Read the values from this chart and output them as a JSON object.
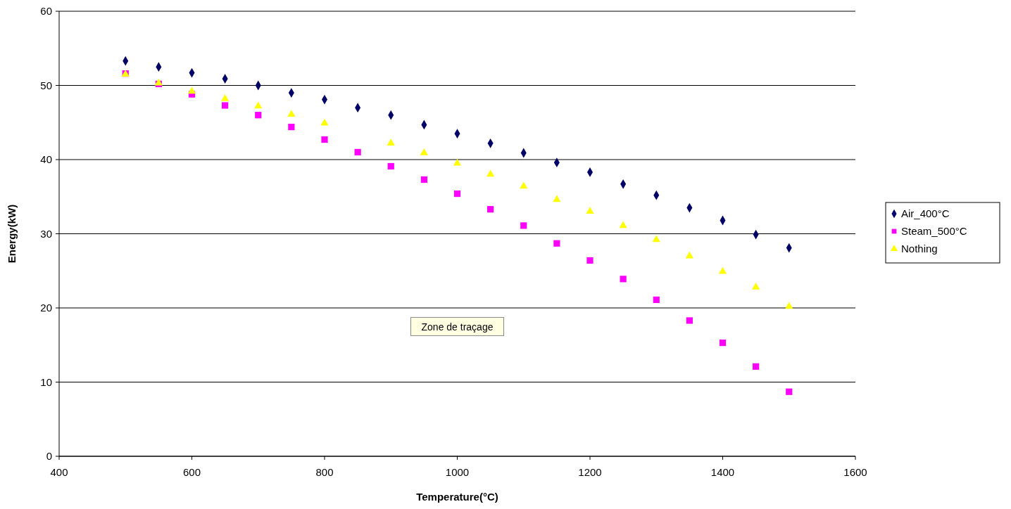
{
  "chart_data": {
    "type": "scatter",
    "xlabel": "Temperature(°C)",
    "ylabel": "Energy(kW)",
    "x": [
      500,
      550,
      600,
      650,
      700,
      750,
      800,
      850,
      900,
      950,
      1000,
      1050,
      1100,
      1150,
      1200,
      1250,
      1300,
      1350,
      1400,
      1450,
      1500
    ],
    "series": [
      {
        "name": "Air_400°C",
        "color": "#000066",
        "marker": "diamond",
        "values": [
          53.3,
          52.5,
          51.7,
          50.9,
          50.0,
          49.0,
          48.1,
          47.0,
          46.0,
          44.7,
          43.5,
          42.2,
          40.9,
          39.6,
          38.3,
          36.7,
          35.2,
          33.5,
          31.8,
          29.9,
          28.1
        ]
      },
      {
        "name": "Steam_500°C",
        "color": "#ff00ff",
        "marker": "square",
        "values": [
          51.6,
          50.2,
          48.8,
          47.3,
          46.0,
          44.4,
          42.7,
          41.0,
          39.1,
          37.3,
          35.4,
          33.3,
          31.1,
          28.7,
          26.4,
          23.9,
          21.1,
          18.3,
          15.3,
          12.1,
          8.7
        ]
      },
      {
        "name": "Nothing",
        "color": "#ffff00",
        "marker": "triangle",
        "values": [
          51.5,
          50.3,
          49.2,
          48.2,
          47.2,
          46.1,
          44.9,
          null,
          42.2,
          40.9,
          39.5,
          38.0,
          36.4,
          34.6,
          33.0,
          31.1,
          29.2,
          27.0,
          24.9,
          22.8,
          20.2
        ]
      }
    ],
    "xlim": [
      400,
      1600
    ],
    "xticks": [
      400,
      600,
      800,
      1000,
      1200,
      1400,
      1600
    ],
    "ylim": [
      0,
      60
    ],
    "yticks": [
      0,
      10,
      20,
      30,
      40,
      50,
      60
    ],
    "grid": "y",
    "legend": "right",
    "annotations": [
      "Zone de traçage"
    ]
  }
}
